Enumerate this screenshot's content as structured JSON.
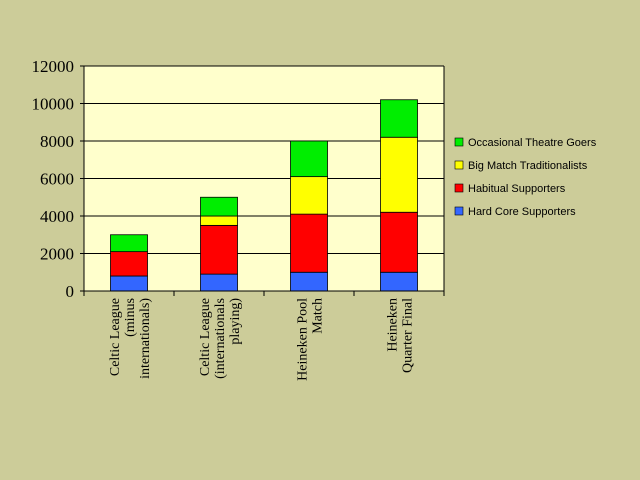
{
  "chart_data": {
    "type": "bar",
    "stacked": true,
    "categories": [
      [
        "Celtic League",
        "(minus",
        "internationals)"
      ],
      [
        "Celtic League",
        "(internationals",
        "playing)"
      ],
      [
        "Heineken Pool",
        "Match"
      ],
      [
        "Heineken",
        "Quarter Final"
      ]
    ],
    "series": [
      {
        "name": "Hard Core Supporters",
        "color": "#3366ff",
        "values": [
          800,
          900,
          1000,
          1000
        ]
      },
      {
        "name": "Habitual Supporters",
        "color": "#ff0000",
        "values": [
          1300,
          2600,
          3100,
          3200
        ]
      },
      {
        "name": "Big Match Traditionalists",
        "color": "#ffff00",
        "values": [
          0,
          500,
          2000,
          4000
        ]
      },
      {
        "name": "Occasional Theatre Goers",
        "color": "#00ee00",
        "values": [
          900,
          1000,
          1900,
          2000
        ]
      }
    ],
    "yticks": [
      0,
      2000,
      4000,
      6000,
      8000,
      10000,
      12000
    ],
    "ylim": [
      0,
      12000
    ],
    "grid": true,
    "plot_background": "#ffffcc",
    "legend_position": "right"
  }
}
